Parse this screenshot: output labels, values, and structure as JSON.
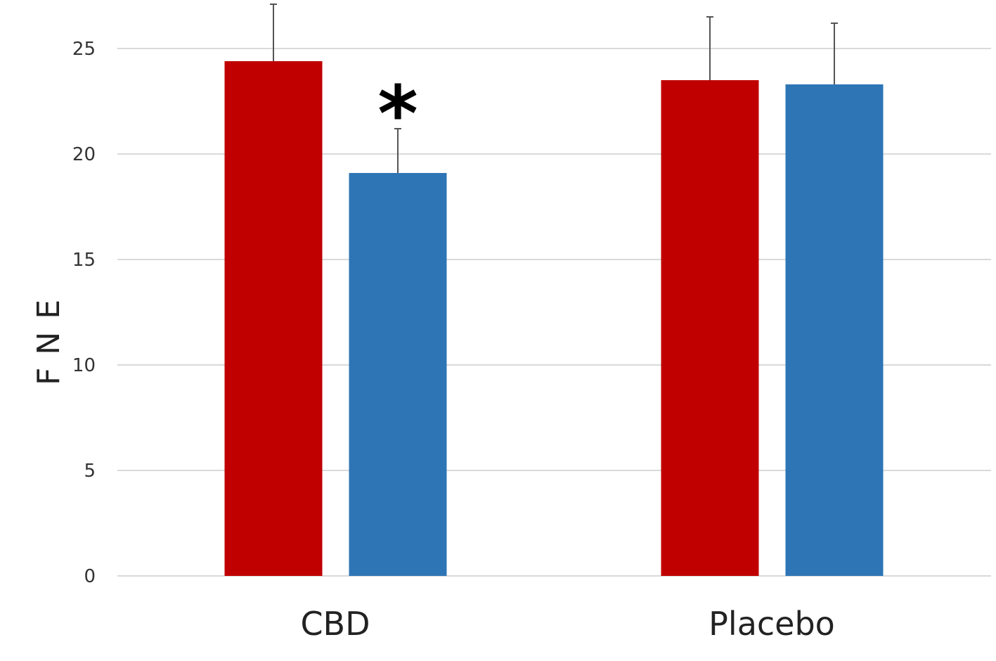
{
  "chart_data": {
    "type": "bar",
    "categories": [
      "CBD",
      "Placebo"
    ],
    "series": [
      {
        "color": "#c00000",
        "values": [
          24.4,
          23.5
        ],
        "error": [
          2.7,
          3.0
        ]
      },
      {
        "color": "#2e75b6",
        "values": [
          19.1,
          23.3
        ],
        "error": [
          2.1,
          2.9
        ]
      }
    ],
    "ylabel": "FNE",
    "ylim": [
      0,
      27
    ],
    "yticks": [
      0,
      5,
      10,
      15,
      20,
      25
    ],
    "grid": true,
    "annotations": [
      {
        "text": "*",
        "category": "CBD",
        "series_index": 1
      }
    ]
  }
}
